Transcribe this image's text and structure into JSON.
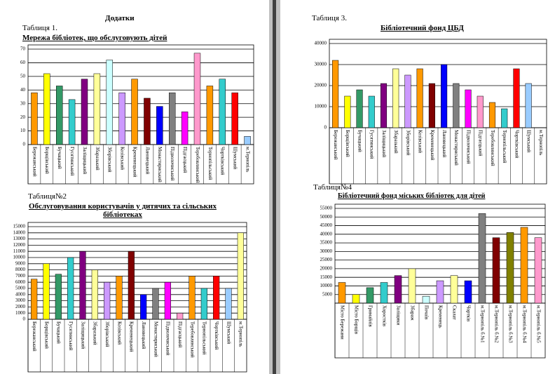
{
  "heading": "Додатки",
  "chart_data": [
    {
      "type": "bar",
      "label": "Таблиця 1.",
      "title": "Мережа бібліотек, що обслуговують дітей",
      "categories": [
        "Бережанський",
        "Борщівський",
        "Бучацький",
        "Гусятинський",
        "Заліщицький",
        "Збаразький",
        "Зборівський",
        "Козівський",
        "Кременецький",
        "Лановецький",
        "Монастириський",
        "Підволочиський",
        "Підгаєцький",
        "Теребовлянський",
        "Тернопільський",
        "Чортківський",
        "Шумський",
        "м.Тернопіль"
      ],
      "values": [
        38,
        52,
        43,
        33,
        48,
        52,
        62,
        38,
        48,
        34,
        28,
        38,
        24,
        67,
        43,
        48,
        38,
        6
      ],
      "colors": [
        "#ff9900",
        "#ffff00",
        "#339966",
        "#33cccc",
        "#800080",
        "#ffff99",
        "#ccffff",
        "#cc99ff",
        "#ff9900",
        "#800000",
        "#0000ff",
        "#808080",
        "#ff00ff",
        "#ff99cc",
        "#ff9900",
        "#33cccc",
        "#ff0000",
        "#99ccff"
      ],
      "ylim": [
        0,
        70
      ],
      "yticks": [
        0,
        10,
        20,
        30,
        40,
        50,
        60,
        70
      ],
      "grid": true
    },
    {
      "type": "bar",
      "label": "Таблиця№2",
      "title": "Обслуговування користувачів у дитячих та сільських бібліотеках",
      "categories": [
        "Бережанський",
        "Борщівський",
        "Бучацький",
        "Гусятинський",
        "Заліщицький",
        "Збаразький",
        "Зборівський",
        "Козівський",
        "Кременецький",
        "Лановецький",
        "Монастириський",
        "Підволочиський",
        "Підгаєцький",
        "Теребовлянський",
        "Тернопільський",
        "Чортківський",
        "Шумський",
        "м.Тернопіль"
      ],
      "values": [
        6500,
        9000,
        7300,
        10000,
        11000,
        8000,
        6000,
        7000,
        11000,
        4000,
        5000,
        6000,
        1000,
        7000,
        5000,
        7000,
        5000,
        14000
      ],
      "colors": [
        "#ff9900",
        "#ffff00",
        "#339966",
        "#33cccc",
        "#800080",
        "#ffff99",
        "#cc99ff",
        "#ff9900",
        "#800000",
        "#0000ff",
        "#808080",
        "#ff00ff",
        "#ff99cc",
        "#ff9900",
        "#33cccc",
        "#ff0000",
        "#99ccff",
        "#ffff99"
      ],
      "ylim": [
        0,
        15000
      ],
      "yticks": [
        0,
        1000,
        2000,
        3000,
        4000,
        5000,
        6000,
        7000,
        8000,
        9000,
        10000,
        11000,
        12000,
        13000,
        14000,
        15000
      ],
      "grid": true
    },
    {
      "type": "bar",
      "label": "Таблиця 3.",
      "title": "Бібліотечний фонд ЦБД",
      "categories": [
        "Бережанський",
        "Борщівський",
        "Бучацький",
        "Гусятинський",
        "Заліщицький",
        "Збаразький",
        "Зборівський",
        "Козівський",
        "Кременецький",
        "Лановецький",
        "Монастириський",
        "Підволочиський",
        "Підгаєцький",
        "Теребовлянський",
        "Тернопільський",
        "Чортківський",
        "Шумський",
        "м.Тернопіль"
      ],
      "values": [
        32000,
        15000,
        18000,
        15000,
        21000,
        28000,
        25000,
        28000,
        21000,
        30000,
        21000,
        18000,
        15000,
        12000,
        9000,
        28000,
        21000,
        0
      ],
      "colors": [
        "#ff9900",
        "#ffff00",
        "#339966",
        "#33cccc",
        "#800080",
        "#ffff99",
        "#cc99ff",
        "#ff9900",
        "#800000",
        "#0000ff",
        "#808080",
        "#ff00ff",
        "#ff99cc",
        "#ff9900",
        "#33cccc",
        "#ff0000",
        "#99ccff",
        "#ffff99"
      ],
      "ylim": [
        0,
        40000
      ],
      "yticks": [
        0,
        10000,
        20000,
        30000,
        40000
      ],
      "grid": true
    },
    {
      "type": "bar",
      "label": "Таблиця№4",
      "title": "Бібліотечний фонд  міських бібліотек для дітей",
      "categories": [
        "Місто Бережани",
        "Місто Борщів",
        "Гримайлів",
        "Хоростків",
        "Заліщики",
        "Збараж",
        "Почаїв",
        "Кременець",
        "Скалат",
        "Чортків",
        "м.Тернопіль б.№1",
        "м.Тернопіль б.№2",
        "м.Тернопіль б.№3",
        "м.Тернопіль б.№4",
        "м.Тернопіль б.№5"
      ],
      "values": [
        12000,
        5000,
        9000,
        12000,
        16000,
        20000,
        4000,
        13000,
        16000,
        13000,
        52000,
        38000,
        41000,
        44000,
        38000
      ],
      "colors": [
        "#ff9900",
        "#ffff00",
        "#339966",
        "#33cccc",
        "#800080",
        "#ffff99",
        "#ccffff",
        "#cc99ff",
        "#ffff99",
        "#0000ff",
        "#808080",
        "#800000",
        "#808000",
        "#ff9900",
        "#ff99cc"
      ],
      "ylim": [
        0,
        55000
      ],
      "yticks": [
        5000,
        10000,
        15000,
        20000,
        25000,
        30000,
        35000,
        40000,
        45000,
        50000,
        55000
      ],
      "grid": true
    }
  ]
}
